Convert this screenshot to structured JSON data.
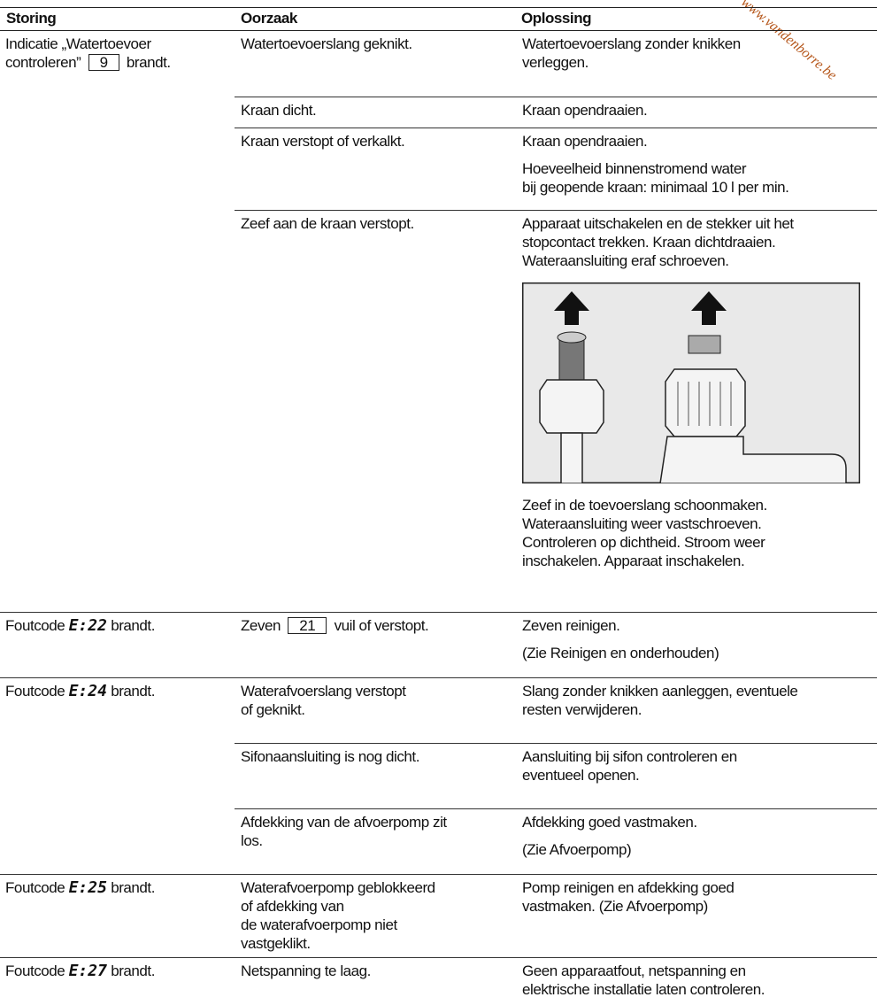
{
  "watermark": "www.vandenborre.be",
  "header": {
    "storing": "Storing",
    "oorzaak": "Oorzaak",
    "oplossing": "Oplossing"
  },
  "groups": [
    {
      "storing": {
        "lines": [
          "Indicatie „Watertoevoer"
        ],
        "prefix": "controleren”",
        "box": "9",
        "suffix": "brandt."
      },
      "rows": [
        {
          "oorzaak": {
            "lines": [
              "Watertoevoerslang geknikt."
            ]
          },
          "oplossing": [
            [
              "Watertoevoerslang zonder knikken",
              "verleggen."
            ]
          ]
        },
        {
          "oorzaak": {
            "lines": [
              "Kraan dicht."
            ]
          },
          "oplossing": [
            [
              "Kraan opendraaien."
            ]
          ]
        },
        {
          "oorzaak": {
            "lines": [
              "Kraan verstopt of verkalkt."
            ]
          },
          "oplossing": [
            [
              "Kraan opendraaien."
            ],
            [
              "Hoeveelheid binnenstromend water",
              "bij geopende kraan: minimaal 10 l per min."
            ]
          ]
        },
        {
          "oorzaak": {
            "lines": [
              "Zeef aan de kraan verstopt."
            ]
          },
          "oplossing": [
            [
              "Apparaat uitschakelen en de stekker uit het",
              "stopcontact trekken. Kraan dichtdraaien.",
              "Wateraansluiting eraf schroeven."
            ],
            [
              "Zeef in de toevoerslang schoonmaken.",
              "Wateraansluiting weer vastschroeven.",
              "Controleren op dichtheid. Stroom weer",
              "inschakelen. Apparaat inschakelen."
            ]
          ]
        }
      ]
    },
    {
      "storing": {
        "prefix": "Foutcode",
        "code": "E:22",
        "suffix": "brandt."
      },
      "rows": [
        {
          "oorzaak": {
            "prefix": "Zeven",
            "box": "21",
            "suffix": "vuil of verstopt."
          },
          "oplossing": [
            [
              "Zeven reinigen."
            ],
            [
              "(Zie Reinigen en onderhouden)"
            ]
          ]
        }
      ]
    },
    {
      "storing": {
        "prefix": "Foutcode",
        "code": "E:24",
        "suffix": "brandt."
      },
      "rows": [
        {
          "oorzaak": {
            "lines": [
              "Waterafvoerslang verstopt",
              "of geknikt."
            ]
          },
          "oplossing": [
            [
              "Slang zonder knikken aanleggen, eventuele",
              "resten verwijderen."
            ]
          ]
        },
        {
          "oorzaak": {
            "lines": [
              "Sifonaansluiting is nog dicht."
            ]
          },
          "oplossing": [
            [
              "Aansluiting bij sifon controleren en",
              "eventueel openen."
            ]
          ]
        },
        {
          "oorzaak": {
            "lines": [
              "Afdekking van de afvoerpomp zit",
              "los."
            ]
          },
          "oplossing": [
            [
              "Afdekking goed vastmaken."
            ],
            [
              "(Zie Afvoerpomp)"
            ]
          ]
        }
      ]
    },
    {
      "storing": {
        "prefix": "Foutcode",
        "code": "E:25",
        "suffix": "brandt."
      },
      "rows": [
        {
          "oorzaak": {
            "lines": [
              "Waterafvoerpomp geblokkeerd",
              "of afdekking van",
              "de waterafvoerpomp niet",
              "vastgeklikt."
            ]
          },
          "oplossing": [
            [
              "Pomp reinigen en afdekking goed",
              "vastmaken. (Zie Afvoerpomp)"
            ]
          ]
        }
      ]
    },
    {
      "storing": {
        "prefix": "Foutcode",
        "code": "E:27",
        "suffix": "brandt."
      },
      "rows": [
        {
          "oorzaak": {
            "lines": [
              "Netspanning te laag."
            ]
          },
          "oplossing": [
            [
              "Geen apparaatfout, netspanning en",
              "elektrische installatie laten controleren."
            ]
          ]
        }
      ]
    }
  ]
}
